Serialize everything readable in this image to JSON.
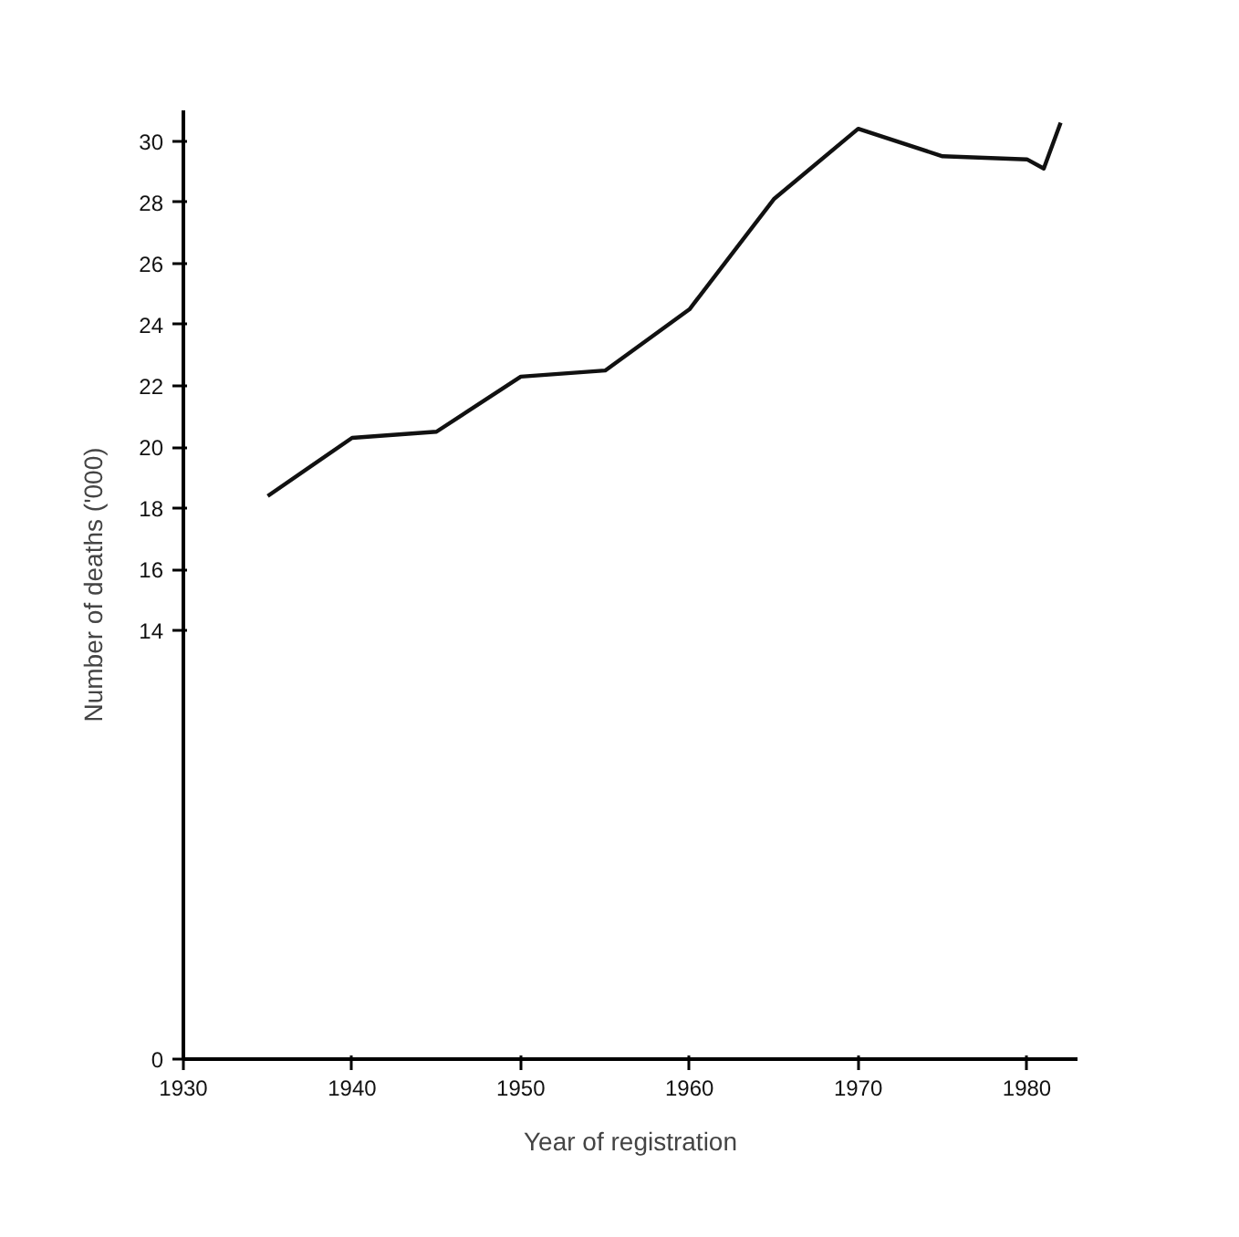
{
  "chart_data": {
    "type": "line",
    "xlabel": "Year of registration",
    "ylabel": "Number of deaths ('000)",
    "x": [
      1935,
      1940,
      1945,
      1950,
      1955,
      1960,
      1965,
      1970,
      1975,
      1980,
      1981,
      1982
    ],
    "series": [
      {
        "color": "#111111",
        "values": [
          18.4,
          20.3,
          20.5,
          22.3,
          22.5,
          24.5,
          28.1,
          30.4,
          29.5,
          29.4,
          29.1,
          30.6
        ]
      }
    ],
    "xlim": [
      1930,
      1983
    ],
    "xticks": [
      1930,
      1940,
      1950,
      1960,
      1970,
      1980
    ],
    "ylim": [
      0,
      31
    ],
    "yticks": [
      0,
      14,
      16,
      18,
      20,
      22,
      24,
      26,
      28,
      30
    ],
    "grid": false,
    "marker": "none",
    "line_style": "solid"
  }
}
